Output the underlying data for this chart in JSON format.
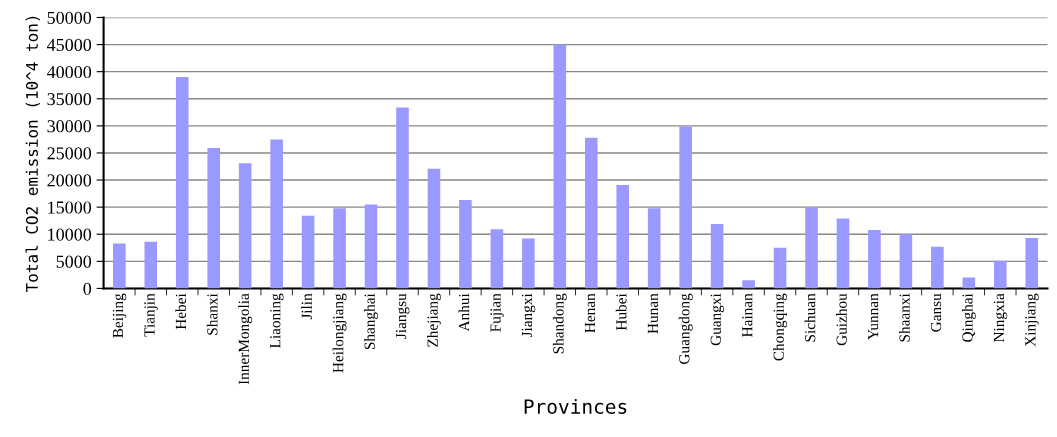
{
  "chart_data": {
    "type": "bar",
    "xlabel": "Provinces",
    "ylabel": "Total CO2 emission (10^4 ton)",
    "categories": [
      "Beijing",
      "Tianjin",
      "Hebei",
      "Shanxi",
      "InnerMongolia",
      "Liaoning",
      "Jilin",
      "Heilongjiang",
      "Shanghai",
      "Jiangsu",
      "Zhejiang",
      "Anhui",
      "Fujian",
      "Jiangxi",
      "Shandong",
      "Henan",
      "Hubei",
      "Hunan",
      "Guangdong",
      "Guangxi",
      "Hainan",
      "Chongqing",
      "Sichuan",
      "Guizhou",
      "Yunnan",
      "Shaanxi",
      "Gansu",
      "Qinghai",
      "Ningxia",
      "Xinjiang"
    ],
    "values": [
      8300,
      8600,
      39000,
      25900,
      23100,
      27500,
      13400,
      14800,
      15500,
      33400,
      22100,
      16300,
      10900,
      9200,
      45000,
      27800,
      19100,
      14800,
      29900,
      11900,
      1500,
      7500,
      15000,
      12900,
      10800,
      10000,
      7700,
      2000,
      5100,
      9300
    ],
    "color": "#9999ff",
    "ylim": [
      0,
      50000
    ],
    "yticks": [
      0,
      5000,
      10000,
      15000,
      20000,
      25000,
      30000,
      35000,
      40000,
      45000,
      50000
    ],
    "grid": "y",
    "legend": false
  }
}
